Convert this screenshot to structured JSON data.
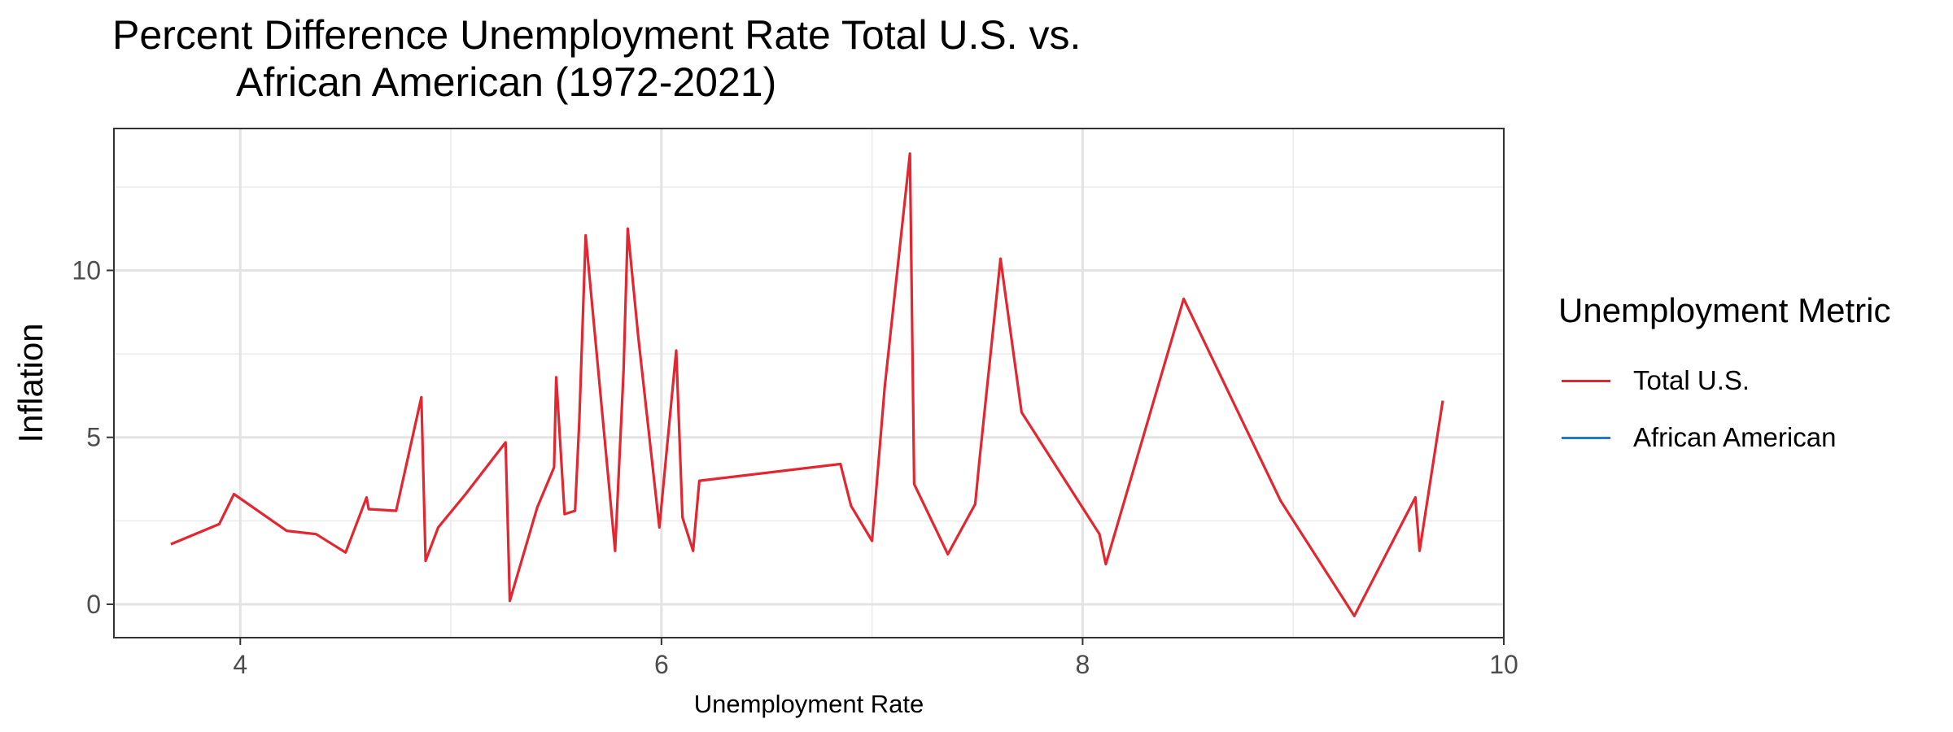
{
  "chart_data": {
    "type": "line",
    "title": "Percent Difference Unemployment Rate Total U.S. vs.",
    "title_line2": "African American (1972-2021)",
    "xlabel": "Unemployment Rate",
    "ylabel": "Inflation",
    "xlim": [
      3.4,
      10
    ],
    "ylim": [
      -1,
      14.25
    ],
    "x_ticks": [
      4,
      6,
      8,
      10
    ],
    "y_ticks": [
      0,
      5,
      10
    ],
    "x_minor": [
      5,
      7,
      9
    ],
    "y_minor": [
      2.5,
      7.5,
      12.5
    ],
    "grid": true,
    "legend_position": "right",
    "legend_title": "Unemployment Metric",
    "series": [
      {
        "name": "Total U.S.",
        "color": "#e3262f",
        "x": [
          3.67,
          3.9,
          3.97,
          4.22,
          4.36,
          4.5,
          4.6,
          4.61,
          4.74,
          4.86,
          4.88,
          4.94,
          5.07,
          5.26,
          5.28,
          5.41,
          5.49,
          5.5,
          5.54,
          5.59,
          5.61,
          5.64,
          5.78,
          5.82,
          5.84,
          5.89,
          5.99,
          6.07,
          6.1,
          6.15,
          6.18,
          6.85,
          6.9,
          7.0,
          7.06,
          7.18,
          7.2,
          7.36,
          7.49,
          7.51,
          7.61,
          7.71,
          8.08,
          8.11,
          8.48,
          8.94,
          9.29,
          9.58,
          9.6,
          9.71
        ],
        "y": [
          1.8,
          2.4,
          3.3,
          2.2,
          2.1,
          1.55,
          3.2,
          2.85,
          2.8,
          6.2,
          1.3,
          2.3,
          3.3,
          4.85,
          0.1,
          2.9,
          4.1,
          6.8,
          2.7,
          2.8,
          5.5,
          11.05,
          1.6,
          7.0,
          11.25,
          8.0,
          2.3,
          7.6,
          2.6,
          1.6,
          3.7,
          4.2,
          2.95,
          1.9,
          6.5,
          13.5,
          3.6,
          1.5,
          3.0,
          4.3,
          10.35,
          5.75,
          2.1,
          1.2,
          9.15,
          3.1,
          -0.35,
          3.2,
          1.6,
          6.1
        ]
      },
      {
        "name": "African American",
        "color": "#1f78d1",
        "x": [],
        "y": []
      }
    ]
  }
}
